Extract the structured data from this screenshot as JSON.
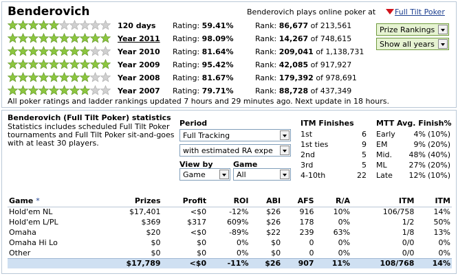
{
  "player": {
    "name": "Benderovich",
    "plays_at_text": "Benderovich plays online poker at",
    "site_link": "Full Tilt Poker"
  },
  "colors": {
    "star_full": "#8cc63f",
    "star_empty": "#d0d0d0",
    "flag": "#d0131b",
    "link": "#1a3d8f",
    "total_row": "#cfe0f2"
  },
  "ratings": [
    {
      "label": "120 days",
      "link": false,
      "rating_label": "Rating:",
      "rating": "59.41%",
      "rank_label": "Rank:",
      "rank": "86,677",
      "of": "of 213,561",
      "stars": 5
    },
    {
      "label": "Year 2011",
      "link": true,
      "rating_label": "Rating:",
      "rating": "98.09%",
      "rank_label": "Rank:",
      "rank": "14,267",
      "of": "of 748,615",
      "stars": 10
    },
    {
      "label": "Year 2010",
      "link": false,
      "rating_label": "Rating:",
      "rating": "81.64%",
      "rank_label": "Rank:",
      "rank": "209,041",
      "of": "of 1,138,731",
      "stars": 8
    },
    {
      "label": "Year 2009",
      "link": false,
      "rating_label": "Rating:",
      "rating": "95.42%",
      "rank_label": "Rank:",
      "rank": "42,085",
      "of": "of 917,927",
      "stars": 10
    },
    {
      "label": "Year 2008",
      "link": false,
      "rating_label": "Rating:",
      "rating": "81.67%",
      "rank_label": "Rank:",
      "rank": "179,392",
      "of": "of 978,691",
      "stars": 8
    },
    {
      "label": "Year 2007",
      "link": false,
      "rating_label": "Rating:",
      "rating": "79.71%",
      "rank_label": "Rank:",
      "rank": "88,728",
      "of": "of 437,349",
      "stars": 8
    }
  ],
  "side": {
    "prize_rankings": "Prize Rankings",
    "show_all_years": "Show all years"
  },
  "update_note": "All poker ratings and ladder rankings updated 7 hours and 29 minutes ago. Next update in 18 hours.",
  "stats": {
    "title": "Benderovich (Full Tilt Poker) statistics",
    "description": "Statistics includes scheduled Full Tilt Poker tournaments and Full Tilt Poker sit-and-goes with at least 30 players.",
    "period_label": "Period",
    "period_value": "Full Tracking",
    "estimate_value": "with estimated RA expe",
    "viewby_label": "View by",
    "viewby_value": "Game",
    "game_label": "Game",
    "game_value": "All"
  },
  "itm": {
    "title": "ITM Finishes",
    "rows": [
      {
        "k": "1st",
        "v": "6"
      },
      {
        "k": "1st ties",
        "v": "9"
      },
      {
        "k": "2nd",
        "v": "5"
      },
      {
        "k": "3rd",
        "v": "5"
      },
      {
        "k": "4-10th",
        "v": "22"
      }
    ]
  },
  "mtt": {
    "title": "MTT Avg. Finish%",
    "rows": [
      {
        "k": "Early",
        "p": "4%",
        "q": "(10%)"
      },
      {
        "k": "EM",
        "p": "9%",
        "q": "(20%)"
      },
      {
        "k": "Mid.",
        "p": "48%",
        "q": "(40%)"
      },
      {
        "k": "ML",
        "p": "27%",
        "q": "(20%)"
      },
      {
        "k": "Late",
        "p": "12%",
        "q": "(10%)"
      }
    ]
  },
  "games": {
    "headers": [
      "Game",
      "*",
      "Prizes",
      "Profit",
      "ROI",
      "ABI",
      "AFS",
      "R/A",
      "ITM",
      "ITM"
    ],
    "rows": [
      {
        "game": "Hold'em NL",
        "prizes": "$17,401",
        "profit": "<$0",
        "roi": "-12%",
        "abi": "$26",
        "afs": "916",
        "ra": "10%",
        "itm": "106/758",
        "itm_pct": "14%"
      },
      {
        "game": "Hold'em L/PL",
        "prizes": "$369",
        "profit": "$317",
        "roi": "609%",
        "abi": "$26",
        "afs": "178",
        "ra": "0%",
        "itm": "1/2",
        "itm_pct": "50%"
      },
      {
        "game": "Omaha",
        "prizes": "$20",
        "profit": "<$0",
        "roi": "-89%",
        "abi": "$22",
        "afs": "239",
        "ra": "63%",
        "itm": "1/8",
        "itm_pct": "13%"
      },
      {
        "game": "Omaha Hi Lo",
        "prizes": "$0",
        "profit": "$0",
        "roi": "0%",
        "abi": "$0",
        "afs": "0",
        "ra": "0%",
        "itm": "0/0",
        "itm_pct": "0%"
      },
      {
        "game": "Other",
        "prizes": "$0",
        "profit": "$0",
        "roi": "0%",
        "abi": "$0",
        "afs": "0",
        "ra": "0%",
        "itm": "0/0",
        "itm_pct": "0%"
      }
    ],
    "total": {
      "prizes": "$17,789",
      "profit": "<$0",
      "roi": "-11%",
      "abi": "$26",
      "afs": "907",
      "ra": "11%",
      "itm": "108/768",
      "itm_pct": "14%"
    }
  }
}
